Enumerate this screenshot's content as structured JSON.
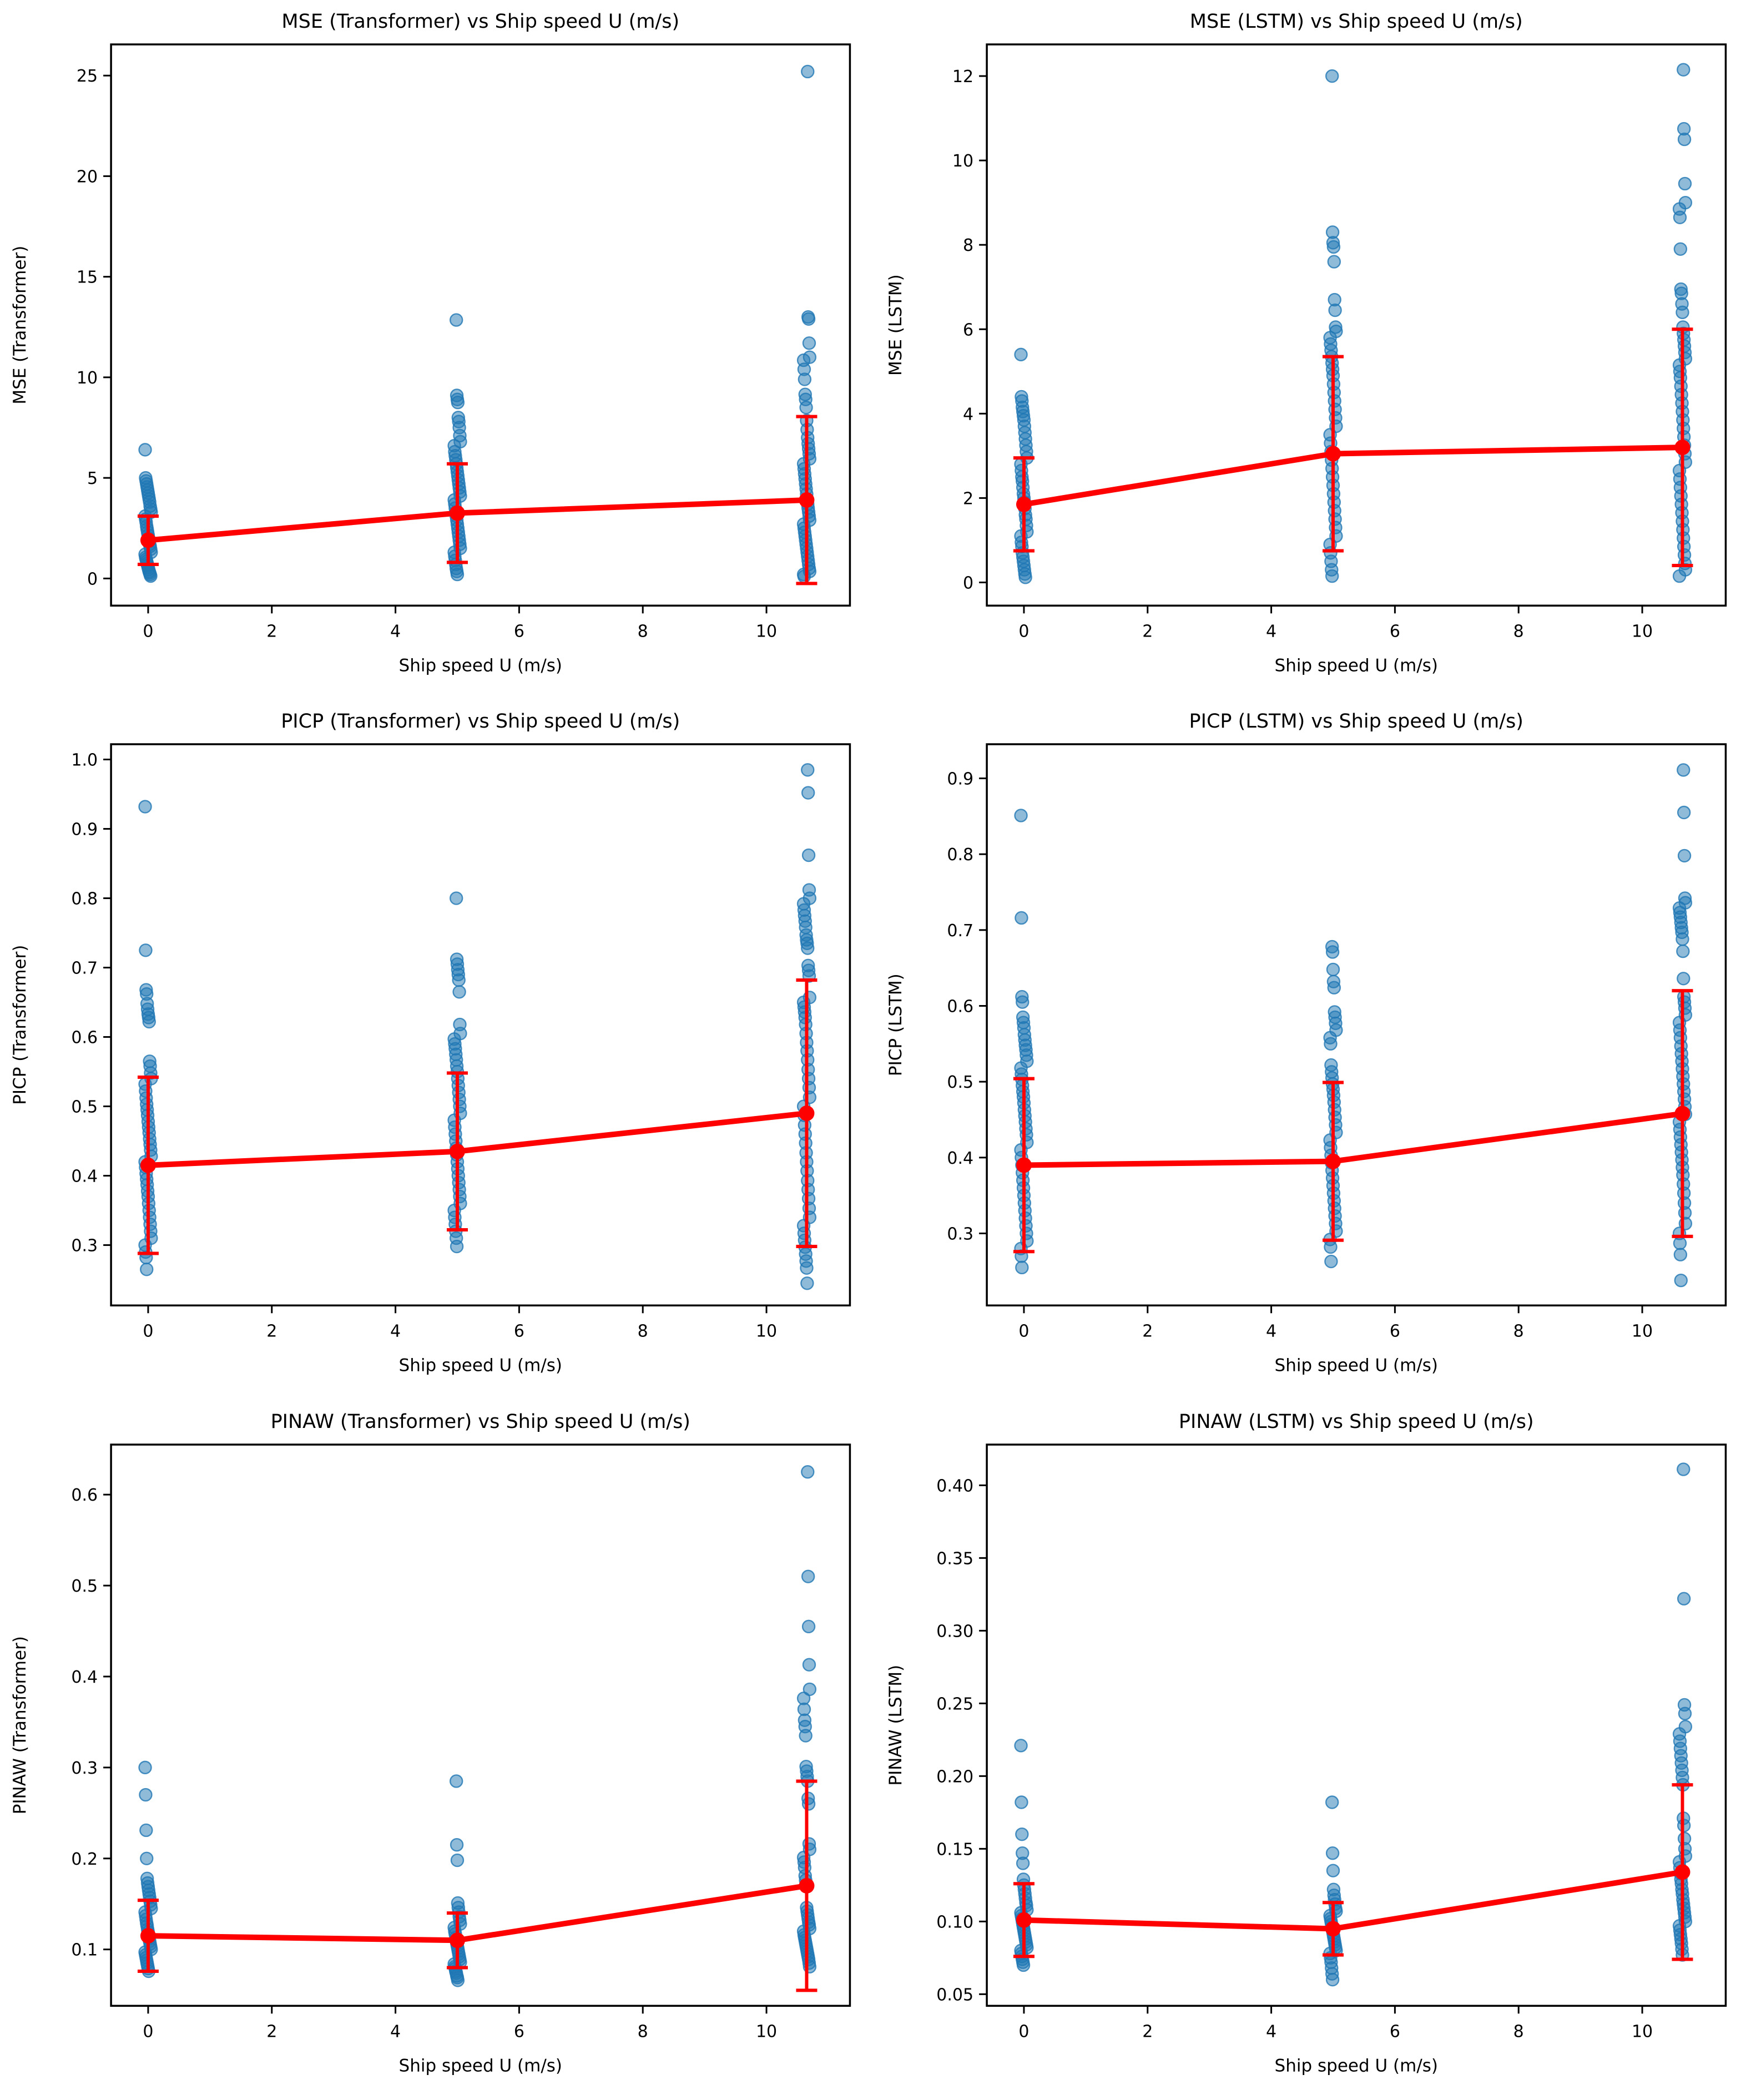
{
  "figure": {
    "background": "#ffffff",
    "axis_color": "#000000",
    "scatter_color": "#1f77b4",
    "mean_color": "#ff0000"
  },
  "shared": {
    "xlabel": "Ship speed U (m/s)",
    "xlim": [
      -0.6,
      11.35
    ],
    "xticks": [
      0,
      2,
      4,
      6,
      8,
      10
    ],
    "xtick_labels": [
      "0",
      "2",
      "4",
      "6",
      "8",
      "10"
    ]
  },
  "chart_data": [
    {
      "type": "scatter",
      "title": "MSE (Transformer) vs Ship speed U (m/s)",
      "xlabel": "Ship speed U (m/s)",
      "ylabel": "MSE (Transformer)",
      "ylim": [
        -1.35,
        26.55
      ],
      "yticks": [
        0,
        5,
        10,
        15,
        20,
        25
      ],
      "ytick_labels": [
        "0",
        "5",
        "10",
        "15",
        "20",
        "25"
      ],
      "groups": [
        {
          "x": 0,
          "y": [
            6.4,
            5.0,
            4.85,
            4.7,
            4.55,
            4.4,
            4.25,
            4.1,
            3.95,
            3.8,
            3.6,
            3.45,
            3.3,
            3.1,
            2.95,
            2.8,
            2.6,
            2.45,
            2.3,
            2.15,
            2.0,
            1.85,
            1.7,
            1.6,
            1.45,
            1.3,
            1.2,
            1.05,
            0.95,
            0.85,
            0.75,
            0.65,
            0.55,
            0.45,
            0.35,
            0.28,
            0.2,
            0.12
          ]
        },
        {
          "x": 5,
          "y": [
            12.85,
            9.1,
            8.9,
            8.75,
            8.0,
            7.8,
            7.5,
            7.1,
            6.8,
            6.6,
            6.3,
            6.1,
            5.9,
            5.7,
            5.5,
            5.3,
            5.1,
            4.9,
            4.7,
            4.5,
            4.3,
            4.1,
            3.9,
            3.7,
            3.5,
            3.3,
            3.1,
            2.9,
            2.7,
            2.5,
            2.3,
            2.1,
            1.9,
            1.7,
            1.5,
            1.3,
            1.1,
            0.9,
            0.7,
            0.5,
            0.35,
            0.2
          ]
        },
        {
          "x": 10.65,
          "y": [
            25.2,
            13.0,
            12.9,
            11.7,
            11.0,
            10.85,
            10.4,
            9.9,
            9.15,
            8.9,
            8.5,
            7.85,
            7.4,
            7.0,
            6.7,
            6.45,
            6.2,
            5.95,
            5.7,
            5.45,
            5.2,
            4.95,
            4.7,
            4.45,
            4.2,
            3.95,
            3.7,
            3.5,
            3.3,
            3.1,
            2.9,
            2.7,
            2.5,
            2.3,
            2.1,
            1.9,
            1.7,
            1.5,
            1.3,
            1.1,
            0.9,
            0.7,
            0.5,
            0.35,
            0.2,
            0.1
          ]
        }
      ],
      "mean_line": {
        "x": [
          0,
          5,
          10.65
        ],
        "y": [
          1.9,
          3.25,
          3.9
        ],
        "yerr": [
          1.2,
          2.45,
          4.15
        ]
      }
    },
    {
      "type": "scatter",
      "title": "MSE (LSTM) vs Ship speed U (m/s)",
      "xlabel": "Ship speed U (m/s)",
      "ylabel": "MSE (LSTM)",
      "ylim": [
        -0.55,
        12.75
      ],
      "yticks": [
        0,
        2,
        4,
        6,
        8,
        10,
        12
      ],
      "ytick_labels": [
        "0",
        "2",
        "4",
        "6",
        "8",
        "10",
        "12"
      ],
      "groups": [
        {
          "x": 0,
          "y": [
            5.4,
            4.4,
            4.3,
            4.15,
            4.05,
            3.95,
            3.85,
            3.7,
            3.55,
            3.4,
            3.25,
            3.1,
            2.95,
            2.8,
            2.65,
            2.5,
            2.4,
            2.25,
            2.1,
            2.0,
            1.9,
            1.75,
            1.6,
            1.5,
            1.35,
            1.2,
            1.1,
            0.95,
            0.85,
            0.7,
            0.6,
            0.5,
            0.4,
            0.3,
            0.2,
            0.12
          ]
        },
        {
          "x": 5,
          "y": [
            12.0,
            8.3,
            8.05,
            7.95,
            7.6,
            6.7,
            6.45,
            6.05,
            5.95,
            5.8,
            5.65,
            5.5,
            5.35,
            5.2,
            5.05,
            4.9,
            4.7,
            4.5,
            4.3,
            4.1,
            3.9,
            3.7,
            3.5,
            3.3,
            3.1,
            2.9,
            2.7,
            2.5,
            2.3,
            2.1,
            1.9,
            1.7,
            1.5,
            1.3,
            1.1,
            0.9,
            0.7,
            0.5,
            0.3,
            0.15
          ]
        },
        {
          "x": 10.65,
          "y": [
            12.15,
            10.75,
            10.5,
            9.45,
            9.0,
            8.85,
            8.65,
            7.9,
            6.95,
            6.85,
            6.6,
            6.4,
            6.05,
            5.9,
            5.75,
            5.6,
            5.45,
            5.3,
            5.15,
            5.0,
            4.85,
            4.65,
            4.45,
            4.25,
            4.05,
            3.85,
            3.65,
            3.45,
            3.25,
            3.05,
            2.85,
            2.65,
            2.45,
            2.25,
            2.05,
            1.85,
            1.65,
            1.45,
            1.25,
            1.05,
            0.85,
            0.65,
            0.45,
            0.3,
            0.15
          ]
        }
      ],
      "mean_line": {
        "x": [
          0,
          5,
          10.65
        ],
        "y": [
          1.85,
          3.05,
          3.2
        ],
        "yerr": [
          1.1,
          2.3,
          2.8
        ]
      }
    },
    {
      "type": "scatter",
      "title": "PICP (Transformer) vs Ship speed U (m/s)",
      "xlabel": "Ship speed U (m/s)",
      "ylabel": "PICP (Transformer)",
      "ylim": [
        0.213,
        1.022
      ],
      "yticks": [
        0.3,
        0.4,
        0.5,
        0.6,
        0.7,
        0.8,
        0.9,
        1.0
      ],
      "ytick_labels": [
        "0.3",
        "0.4",
        "0.5",
        "0.6",
        "0.7",
        "0.8",
        "0.9",
        "1.0"
      ],
      "groups": [
        {
          "x": 0,
          "y": [
            0.932,
            0.725,
            0.668,
            0.662,
            0.648,
            0.64,
            0.633,
            0.628,
            0.622,
            0.565,
            0.558,
            0.548,
            0.54,
            0.532,
            0.522,
            0.512,
            0.503,
            0.495,
            0.487,
            0.478,
            0.47,
            0.462,
            0.453,
            0.445,
            0.437,
            0.428,
            0.42,
            0.412,
            0.403,
            0.395,
            0.387,
            0.378,
            0.37,
            0.36,
            0.35,
            0.34,
            0.33,
            0.32,
            0.31,
            0.3,
            0.29,
            0.282,
            0.265
          ]
        },
        {
          "x": 5,
          "y": [
            0.8,
            0.712,
            0.705,
            0.697,
            0.69,
            0.682,
            0.665,
            0.618,
            0.605,
            0.597,
            0.59,
            0.583,
            0.575,
            0.567,
            0.558,
            0.55,
            0.54,
            0.53,
            0.52,
            0.51,
            0.5,
            0.49,
            0.48,
            0.47,
            0.46,
            0.45,
            0.44,
            0.43,
            0.42,
            0.41,
            0.4,
            0.39,
            0.38,
            0.37,
            0.36,
            0.35,
            0.34,
            0.33,
            0.32,
            0.31,
            0.298
          ]
        },
        {
          "x": 10.65,
          "y": [
            0.985,
            0.952,
            0.862,
            0.812,
            0.8,
            0.792,
            0.783,
            0.775,
            0.767,
            0.758,
            0.747,
            0.74,
            0.735,
            0.728,
            0.703,
            0.696,
            0.688,
            0.657,
            0.65,
            0.643,
            0.636,
            0.628,
            0.618,
            0.605,
            0.592,
            0.58,
            0.567,
            0.553,
            0.54,
            0.527,
            0.513,
            0.5,
            0.487,
            0.473,
            0.46,
            0.447,
            0.433,
            0.42,
            0.407,
            0.393,
            0.38,
            0.367,
            0.353,
            0.34,
            0.328,
            0.317,
            0.307,
            0.297,
            0.287,
            0.277,
            0.267,
            0.245
          ]
        }
      ],
      "mean_line": {
        "x": [
          0,
          5,
          10.65
        ],
        "y": [
          0.415,
          0.435,
          0.49
        ],
        "yerr": [
          0.127,
          0.113,
          0.192
        ]
      }
    },
    {
      "type": "scatter",
      "title": "PICP (LSTM) vs Ship speed U (m/s)",
      "xlabel": "Ship speed U (m/s)",
      "ylabel": "PICP (LSTM)",
      "ylim": [
        0.205,
        0.945
      ],
      "yticks": [
        0.3,
        0.4,
        0.5,
        0.6,
        0.7,
        0.8,
        0.9
      ],
      "ytick_labels": [
        "0.3",
        "0.4",
        "0.5",
        "0.6",
        "0.7",
        "0.8",
        "0.9"
      ],
      "groups": [
        {
          "x": 0,
          "y": [
            0.851,
            0.716,
            0.612,
            0.605,
            0.585,
            0.578,
            0.571,
            0.562,
            0.555,
            0.548,
            0.542,
            0.535,
            0.527,
            0.518,
            0.51,
            0.503,
            0.495,
            0.487,
            0.48,
            0.472,
            0.463,
            0.455,
            0.447,
            0.438,
            0.43,
            0.42,
            0.41,
            0.4,
            0.39,
            0.38,
            0.37,
            0.36,
            0.35,
            0.34,
            0.33,
            0.32,
            0.31,
            0.3,
            0.29,
            0.28,
            0.27,
            0.255
          ]
        },
        {
          "x": 5,
          "y": [
            0.678,
            0.671,
            0.648,
            0.632,
            0.624,
            0.592,
            0.585,
            0.577,
            0.568,
            0.558,
            0.55,
            0.522,
            0.513,
            0.505,
            0.497,
            0.49,
            0.482,
            0.473,
            0.463,
            0.453,
            0.443,
            0.433,
            0.423,
            0.413,
            0.403,
            0.393,
            0.383,
            0.373,
            0.363,
            0.353,
            0.343,
            0.333,
            0.323,
            0.313,
            0.303,
            0.292,
            0.282,
            0.263
          ]
        },
        {
          "x": 10.65,
          "y": [
            0.911,
            0.855,
            0.798,
            0.742,
            0.736,
            0.729,
            0.723,
            0.717,
            0.71,
            0.703,
            0.697,
            0.688,
            0.672,
            0.636,
            0.612,
            0.605,
            0.597,
            0.588,
            0.578,
            0.568,
            0.558,
            0.547,
            0.537,
            0.527,
            0.517,
            0.507,
            0.497,
            0.487,
            0.477,
            0.467,
            0.457,
            0.447,
            0.437,
            0.427,
            0.417,
            0.407,
            0.397,
            0.387,
            0.377,
            0.365,
            0.353,
            0.34,
            0.327,
            0.313,
            0.3,
            0.287,
            0.272,
            0.238
          ]
        }
      ],
      "mean_line": {
        "x": [
          0,
          5,
          10.65
        ],
        "y": [
          0.39,
          0.395,
          0.458
        ],
        "yerr": [
          0.114,
          0.104,
          0.162
        ]
      }
    },
    {
      "type": "scatter",
      "title": "PINAW (Transformer) vs Ship speed U (m/s)",
      "xlabel": "Ship speed U (m/s)",
      "ylabel": "PINAW (Transformer)",
      "ylim": [
        0.038,
        0.655
      ],
      "yticks": [
        0.1,
        0.2,
        0.3,
        0.4,
        0.5,
        0.6
      ],
      "ytick_labels": [
        "0.1",
        "0.2",
        "0.3",
        "0.4",
        "0.5",
        "0.6"
      ],
      "groups": [
        {
          "x": 0,
          "y": [
            0.3,
            0.27,
            0.231,
            0.2,
            0.178,
            0.173,
            0.169,
            0.165,
            0.161,
            0.157,
            0.153,
            0.149,
            0.145,
            0.141,
            0.137,
            0.133,
            0.129,
            0.126,
            0.122,
            0.119,
            0.115,
            0.112,
            0.109,
            0.106,
            0.103,
            0.1,
            0.097,
            0.094,
            0.091,
            0.088,
            0.085,
            0.082,
            0.079,
            0.076
          ]
        },
        {
          "x": 5,
          "y": [
            0.285,
            0.215,
            0.198,
            0.151,
            0.146,
            0.141,
            0.136,
            0.132,
            0.128,
            0.124,
            0.12,
            0.117,
            0.113,
            0.11,
            0.107,
            0.104,
            0.101,
            0.098,
            0.095,
            0.092,
            0.089,
            0.086,
            0.084,
            0.081,
            0.079,
            0.076,
            0.074,
            0.071,
            0.069,
            0.066
          ]
        },
        {
          "x": 10.65,
          "y": [
            0.625,
            0.51,
            0.455,
            0.413,
            0.386,
            0.376,
            0.364,
            0.352,
            0.345,
            0.335,
            0.301,
            0.296,
            0.29,
            0.285,
            0.266,
            0.26,
            0.216,
            0.21,
            0.201,
            0.196,
            0.19,
            0.181,
            0.176,
            0.171,
            0.146,
            0.142,
            0.138,
            0.134,
            0.13,
            0.127,
            0.123,
            0.12,
            0.116,
            0.113,
            0.11,
            0.107,
            0.104,
            0.101,
            0.098,
            0.095,
            0.092,
            0.089,
            0.085,
            0.081
          ]
        }
      ],
      "mean_line": {
        "x": [
          0,
          5,
          10.65
        ],
        "y": [
          0.115,
          0.11,
          0.17
        ],
        "yerr": [
          0.039,
          0.03,
          0.115
        ]
      }
    },
    {
      "type": "scatter",
      "title": "PINAW (LSTM) vs Ship speed U (m/s)",
      "xlabel": "Ship speed U (m/s)",
      "ylabel": "PINAW (LSTM)",
      "ylim": [
        0.042,
        0.428
      ],
      "yticks": [
        0.05,
        0.1,
        0.15,
        0.2,
        0.25,
        0.3,
        0.35,
        0.4
      ],
      "ytick_labels": [
        "0.05",
        "0.10",
        "0.15",
        "0.20",
        "0.25",
        "0.30",
        "0.35",
        "0.40"
      ],
      "groups": [
        {
          "x": 0,
          "y": [
            0.221,
            0.182,
            0.16,
            0.147,
            0.14,
            0.129,
            0.125,
            0.122,
            0.119,
            0.116,
            0.113,
            0.111,
            0.108,
            0.106,
            0.104,
            0.102,
            0.1,
            0.098,
            0.096,
            0.094,
            0.092,
            0.09,
            0.088,
            0.086,
            0.084,
            0.082,
            0.08,
            0.078,
            0.076,
            0.074,
            0.072,
            0.07
          ]
        },
        {
          "x": 5,
          "y": [
            0.182,
            0.147,
            0.135,
            0.122,
            0.118,
            0.115,
            0.112,
            0.109,
            0.107,
            0.104,
            0.102,
            0.1,
            0.098,
            0.096,
            0.094,
            0.092,
            0.09,
            0.088,
            0.086,
            0.084,
            0.082,
            0.08,
            0.078,
            0.075,
            0.072,
            0.068,
            0.064,
            0.06
          ]
        },
        {
          "x": 10.65,
          "y": [
            0.411,
            0.322,
            0.249,
            0.243,
            0.234,
            0.229,
            0.224,
            0.219,
            0.214,
            0.209,
            0.204,
            0.199,
            0.194,
            0.171,
            0.166,
            0.157,
            0.15,
            0.145,
            0.141,
            0.137,
            0.133,
            0.129,
            0.126,
            0.122,
            0.119,
            0.115,
            0.112,
            0.109,
            0.106,
            0.103,
            0.1,
            0.097,
            0.094,
            0.091,
            0.088,
            0.085,
            0.081,
            0.077
          ]
        }
      ],
      "mean_line": {
        "x": [
          0,
          5,
          10.65
        ],
        "y": [
          0.101,
          0.095,
          0.134
        ],
        "yerr": [
          0.025,
          0.018,
          0.06
        ]
      }
    }
  ]
}
